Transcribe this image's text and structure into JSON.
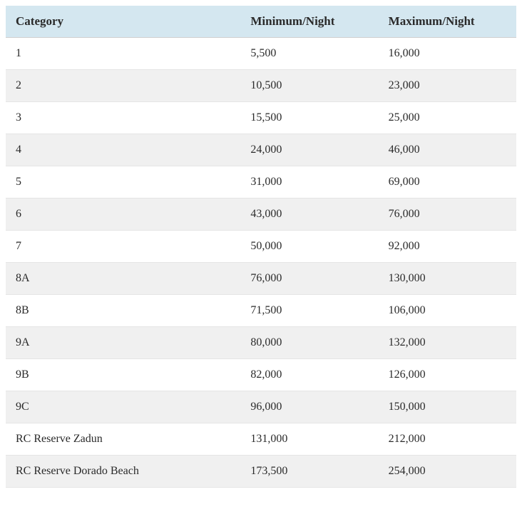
{
  "table": {
    "type": "table",
    "columns": [
      {
        "key": "category",
        "label": "Category",
        "width": "46%",
        "align": "left"
      },
      {
        "key": "minimum",
        "label": "Minimum/Night",
        "width": "27%",
        "align": "left"
      },
      {
        "key": "maximum",
        "label": "Maximum/Night",
        "width": "27%",
        "align": "left"
      }
    ],
    "rows": [
      {
        "category": "1",
        "minimum": "5,500",
        "maximum": "16,000"
      },
      {
        "category": "2",
        "minimum": "10,500",
        "maximum": "23,000"
      },
      {
        "category": "3",
        "minimum": "15,500",
        "maximum": "25,000"
      },
      {
        "category": "4",
        "minimum": "24,000",
        "maximum": "46,000"
      },
      {
        "category": "5",
        "minimum": "31,000",
        "maximum": "69,000"
      },
      {
        "category": "6",
        "minimum": "43,000",
        "maximum": "76,000"
      },
      {
        "category": "7",
        "minimum": "50,000",
        "maximum": "92,000"
      },
      {
        "category": "8A",
        "minimum": "76,000",
        "maximum": "130,000"
      },
      {
        "category": "8B",
        "minimum": "71,500",
        "maximum": "106,000"
      },
      {
        "category": "9A",
        "minimum": "80,000",
        "maximum": "132,000"
      },
      {
        "category": "9B",
        "minimum": "82,000",
        "maximum": "126,000"
      },
      {
        "category": "9C",
        "minimum": "96,000",
        "maximum": "150,000"
      },
      {
        "category": "RC Reserve Zadun",
        "minimum": "131,000",
        "maximum": "212,000"
      },
      {
        "category": "RC Reserve Dorado Beach",
        "minimum": "173,500",
        "maximum": "254,000"
      }
    ],
    "styling": {
      "header_background": "#d4e7f0",
      "row_odd_background": "#ffffff",
      "row_even_background": "#f0f0f0",
      "border_color": "#e5e5e5",
      "header_border_color": "#d0d0d0",
      "text_color": "#2a2a2a",
      "font_family": "Georgia, 'Times New Roman', serif",
      "header_font_size": 17,
      "cell_font_size": 16,
      "header_font_weight": "bold",
      "cell_padding": "13px 14px",
      "header_padding": "12px 14px"
    }
  }
}
